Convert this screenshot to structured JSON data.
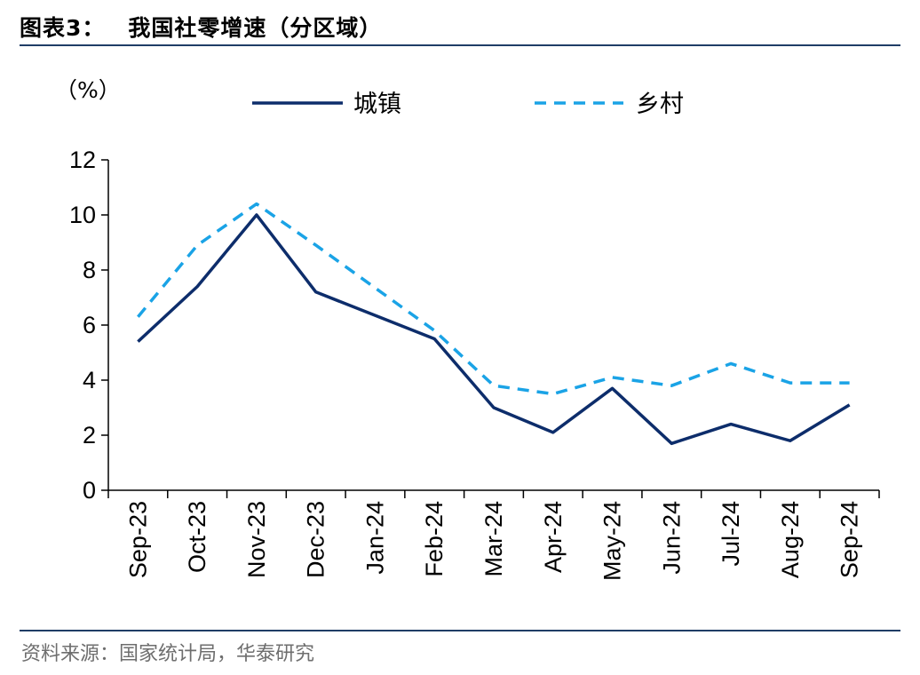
{
  "figure": {
    "label": "图表3：",
    "title": "我国社零增速（分区域）",
    "source": "资料来源：国家统计局，华泰研究"
  },
  "chart_data": {
    "type": "line",
    "unit_label": "（%）",
    "categories": [
      "Sep-23",
      "Oct-23",
      "Nov-23",
      "Dec-23",
      "Jan-24",
      "Feb-24",
      "Mar-24",
      "Apr-24",
      "May-24",
      "Jun-24",
      "Jul-24",
      "Aug-24",
      "Sep-24"
    ],
    "series": [
      {
        "name": "城镇",
        "values": [
          5.4,
          7.4,
          10.0,
          7.2,
          null,
          5.5,
          3.0,
          2.1,
          3.7,
          1.7,
          2.4,
          1.8,
          3.1
        ],
        "color": "#0d2d6b",
        "style": "solid"
      },
      {
        "name": "乡村",
        "values": [
          6.3,
          8.9,
          10.4,
          8.9,
          null,
          5.8,
          3.8,
          3.5,
          4.1,
          3.8,
          4.6,
          3.9,
          3.9
        ],
        "color": "#1aa3e6",
        "style": "dashed"
      }
    ],
    "ylim": [
      0,
      12
    ],
    "yticks": [
      0,
      2,
      4,
      6,
      8,
      10,
      12
    ],
    "legend_position": "top",
    "grid": false
  }
}
